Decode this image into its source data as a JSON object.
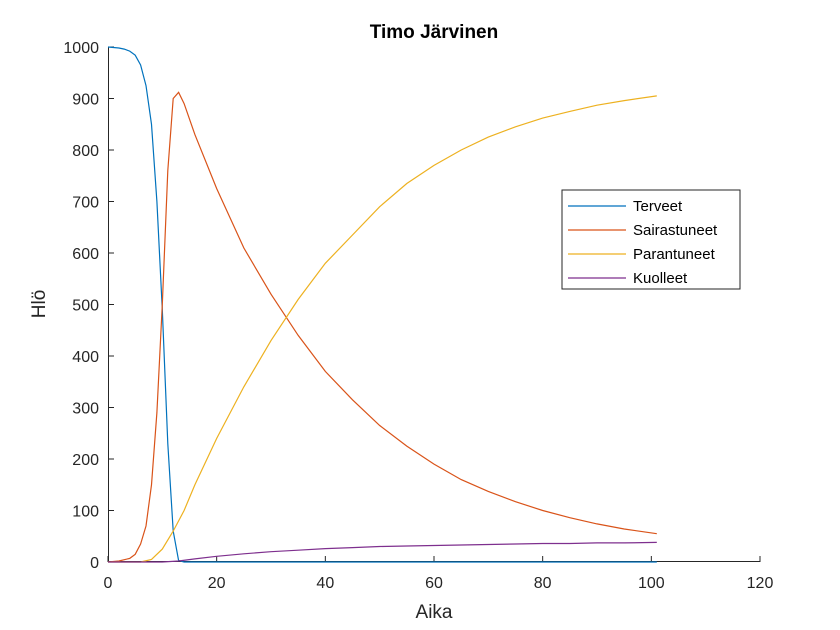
{
  "chart_data": {
    "type": "line",
    "title": "Timo Järvinen",
    "xlabel": "Aika",
    "ylabel": "Hlö",
    "xlim": [
      0,
      120
    ],
    "ylim": [
      0,
      1000
    ],
    "xticks": [
      0,
      20,
      40,
      60,
      80,
      100,
      120
    ],
    "yticks": [
      0,
      100,
      200,
      300,
      400,
      500,
      600,
      700,
      800,
      900,
      1000
    ],
    "grid": false,
    "legend_position": "right",
    "series": [
      {
        "name": "Terveet",
        "color": "#0072BD",
        "points": [
          [
            0,
            1000
          ],
          [
            1,
            999
          ],
          [
            2,
            998
          ],
          [
            3,
            996
          ],
          [
            4,
            992
          ],
          [
            5,
            984
          ],
          [
            6,
            965
          ],
          [
            7,
            925
          ],
          [
            8,
            850
          ],
          [
            9,
            700
          ],
          [
            10,
            490
          ],
          [
            11,
            230
          ],
          [
            12,
            60
          ],
          [
            13,
            3
          ],
          [
            14,
            0
          ],
          [
            101,
            0
          ]
        ]
      },
      {
        "name": "Sairastuneet",
        "color": "#D95319",
        "points": [
          [
            0,
            0
          ],
          [
            2,
            2
          ],
          [
            4,
            7
          ],
          [
            5,
            15
          ],
          [
            6,
            35
          ],
          [
            7,
            70
          ],
          [
            8,
            150
          ],
          [
            9,
            290
          ],
          [
            10,
            500
          ],
          [
            11,
            760
          ],
          [
            12,
            900
          ],
          [
            13,
            912
          ],
          [
            14,
            890
          ],
          [
            16,
            830
          ],
          [
            20,
            725
          ],
          [
            25,
            610
          ],
          [
            30,
            520
          ],
          [
            35,
            440
          ],
          [
            40,
            370
          ],
          [
            45,
            315
          ],
          [
            50,
            265
          ],
          [
            55,
            225
          ],
          [
            60,
            190
          ],
          [
            65,
            160
          ],
          [
            70,
            137
          ],
          [
            75,
            117
          ],
          [
            80,
            100
          ],
          [
            85,
            86
          ],
          [
            90,
            74
          ],
          [
            95,
            64
          ],
          [
            101,
            55
          ]
        ]
      },
      {
        "name": "Parantuneet",
        "color": "#EDB120",
        "points": [
          [
            0,
            0
          ],
          [
            6,
            0
          ],
          [
            8,
            5
          ],
          [
            10,
            25
          ],
          [
            12,
            60
          ],
          [
            14,
            100
          ],
          [
            16,
            150
          ],
          [
            20,
            240
          ],
          [
            25,
            340
          ],
          [
            30,
            430
          ],
          [
            35,
            510
          ],
          [
            40,
            580
          ],
          [
            45,
            635
          ],
          [
            50,
            690
          ],
          [
            55,
            735
          ],
          [
            60,
            770
          ],
          [
            65,
            800
          ],
          [
            70,
            825
          ],
          [
            75,
            845
          ],
          [
            80,
            862
          ],
          [
            85,
            875
          ],
          [
            90,
            887
          ],
          [
            95,
            896
          ],
          [
            101,
            905
          ]
        ]
      },
      {
        "name": "Kuolleet",
        "color": "#7E2F8E",
        "points": [
          [
            0,
            0
          ],
          [
            6,
            0
          ],
          [
            10,
            0
          ],
          [
            13,
            2
          ],
          [
            16,
            6
          ],
          [
            20,
            11
          ],
          [
            25,
            16
          ],
          [
            30,
            20
          ],
          [
            35,
            23
          ],
          [
            40,
            26
          ],
          [
            45,
            28
          ],
          [
            50,
            30
          ],
          [
            55,
            31
          ],
          [
            60,
            32
          ],
          [
            65,
            33
          ],
          [
            70,
            34
          ],
          [
            75,
            35
          ],
          [
            80,
            36
          ],
          [
            85,
            36
          ],
          [
            90,
            37
          ],
          [
            95,
            37
          ],
          [
            101,
            38
          ]
        ]
      }
    ]
  }
}
